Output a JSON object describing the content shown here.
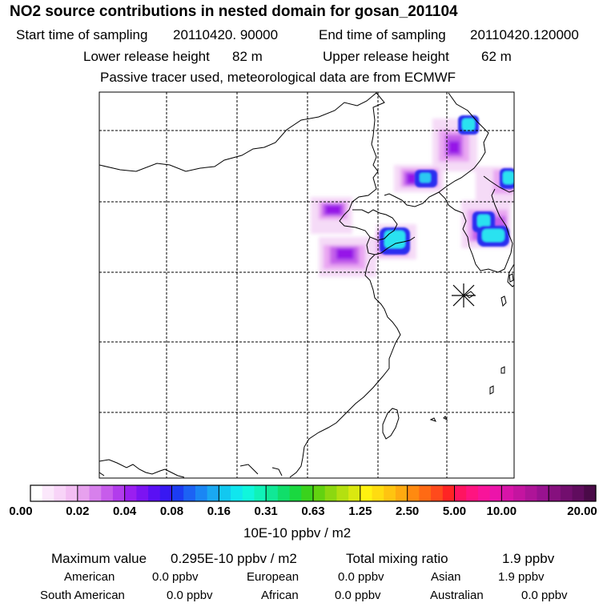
{
  "header": {
    "title": "NO2 source contributions in nested domain for gosan_201104",
    "start_label": "Start time of sampling",
    "start_value": "20110420. 90000",
    "end_label": "End time of sampling",
    "end_value": "20110420.120000",
    "lower_label": "Lower release height",
    "lower_value": "82 m",
    "upper_label": "Upper release height",
    "upper_value": "62 m",
    "note": "Passive tracer used, meteorological data are from ECMWF"
  },
  "map": {
    "receptor_symbol": "asterisk-marker",
    "plume_colors": {
      "faint": "#f4d8f7",
      "light": "#e9a6f2",
      "medium": "#c566ea",
      "deep": "#9013e8",
      "blue": "#2a2ff0",
      "cyan": "#2be2f0",
      "core": "#2af2f6"
    }
  },
  "colorbar": {
    "ticks": [
      "0.00",
      "0.02",
      "0.04",
      "0.08",
      "0.16",
      "0.31",
      "0.63",
      "1.25",
      "2.50",
      "5.00",
      "10.00",
      "20.00"
    ],
    "colors": [
      [
        "#ffffff",
        "#fbe8fb",
        "#f8d4f8",
        "#f3bef3"
      ],
      [
        "#e7a1ee",
        "#d780ec",
        "#c75ceb",
        "#b23cec"
      ],
      [
        "#9a1ff0",
        "#7c14f2",
        "#5a10f4",
        "#3818f2"
      ],
      [
        "#1c3cf2",
        "#1c62f4",
        "#1a86f4",
        "#1aa8f2"
      ],
      [
        "#12c8f0",
        "#10e6ee",
        "#10f6dc",
        "#10f2b8"
      ],
      [
        "#10e896",
        "#10de6a",
        "#1ad840",
        "#3ad21c"
      ],
      [
        "#62d210",
        "#8cd810",
        "#b4e010",
        "#dae810"
      ],
      [
        "#fff210",
        "#ffdc10",
        "#ffc410",
        "#ffaa10"
      ],
      [
        "#ff8a10",
        "#ff6a14",
        "#ff4a1c",
        "#ff2424"
      ],
      [
        "#ff1460",
        "#ff1480",
        "#f8149a",
        "#ec14aa"
      ],
      [
        "#d814a8",
        "#c414a0",
        "#ae1498",
        "#981290"
      ],
      [
        "#86107e",
        "#720e6e",
        "#600c5e",
        "#4a0a48"
      ]
    ],
    "unit": "10E-10 ppbv / m2"
  },
  "footer": {
    "max_label": "Maximum value",
    "max_value": "0.295E-10 ppbv / m2",
    "total_label": "Total mixing ratio",
    "total_value": "1.9 ppbv",
    "regions": [
      {
        "name": "American",
        "value": "0.0 ppbv"
      },
      {
        "name": "European",
        "value": "0.0 ppbv"
      },
      {
        "name": "Asian",
        "value": "1.9 ppbv"
      },
      {
        "name": "South American",
        "value": "0.0 ppbv"
      },
      {
        "name": "African",
        "value": "0.0 ppbv"
      },
      {
        "name": "Australian",
        "value": "0.0 ppbv"
      }
    ]
  }
}
